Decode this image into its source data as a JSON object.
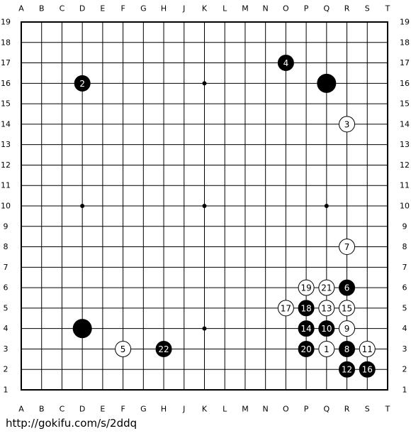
{
  "board": {
    "columns": [
      "A",
      "B",
      "C",
      "D",
      "E",
      "F",
      "G",
      "H",
      "J",
      "K",
      "L",
      "M",
      "N",
      "O",
      "P",
      "Q",
      "R",
      "S",
      "T"
    ],
    "rows": [
      19,
      18,
      17,
      16,
      15,
      14,
      13,
      12,
      11,
      10,
      9,
      8,
      7,
      6,
      5,
      4,
      3,
      2,
      1
    ],
    "stones": [
      {
        "col": "O",
        "row": 17,
        "color": "black",
        "label": "4"
      },
      {
        "col": "D",
        "row": 16,
        "color": "black",
        "label": "2"
      },
      {
        "col": "Q",
        "row": 16,
        "color": "black"
      },
      {
        "col": "R",
        "row": 14,
        "color": "white",
        "label": "3"
      },
      {
        "col": "R",
        "row": 8,
        "color": "white",
        "label": "7"
      },
      {
        "col": "P",
        "row": 6,
        "color": "white",
        "label": "19"
      },
      {
        "col": "Q",
        "row": 6,
        "color": "white",
        "label": "21"
      },
      {
        "col": "R",
        "row": 6,
        "color": "black",
        "label": "6"
      },
      {
        "col": "O",
        "row": 5,
        "color": "white",
        "label": "17"
      },
      {
        "col": "P",
        "row": 5,
        "color": "black",
        "label": "18"
      },
      {
        "col": "Q",
        "row": 5,
        "color": "white",
        "label": "13"
      },
      {
        "col": "R",
        "row": 5,
        "color": "white",
        "label": "15"
      },
      {
        "col": "D",
        "row": 4,
        "color": "black"
      },
      {
        "col": "P",
        "row": 4,
        "color": "black",
        "label": "14"
      },
      {
        "col": "Q",
        "row": 4,
        "color": "black",
        "label": "10"
      },
      {
        "col": "R",
        "row": 4,
        "color": "white",
        "label": "9"
      },
      {
        "col": "F",
        "row": 3,
        "color": "white",
        "label": "5"
      },
      {
        "col": "H",
        "row": 3,
        "color": "black",
        "label": "22"
      },
      {
        "col": "P",
        "row": 3,
        "color": "black",
        "label": "20"
      },
      {
        "col": "Q",
        "row": 3,
        "color": "white",
        "label": "1"
      },
      {
        "col": "R",
        "row": 3,
        "color": "black",
        "label": "8"
      },
      {
        "col": "S",
        "row": 3,
        "color": "white",
        "label": "11"
      },
      {
        "col": "R",
        "row": 2,
        "color": "black",
        "label": "12"
      },
      {
        "col": "S",
        "row": 2,
        "color": "black",
        "label": "16"
      }
    ]
  },
  "footer": {
    "url": "http://gokifu.com/s/2ddq"
  }
}
